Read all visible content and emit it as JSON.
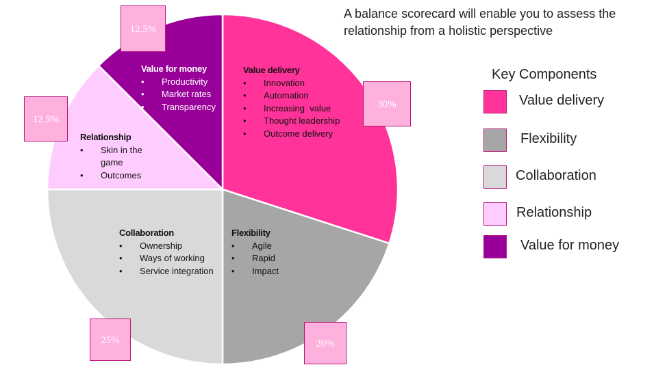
{
  "headline": "A balance scorecard will enable you to assess the relationship from a holistic perspective",
  "legend": {
    "title": "Key Components",
    "items": [
      {
        "label": "Value delivery",
        "color": "#ff3399"
      },
      {
        "label": "Flexibility",
        "color": "#a6a6a6"
      },
      {
        "label": "Collaboration",
        "color": "#d9d9d9"
      },
      {
        "label": "Relationship",
        "color": "#ffccff"
      },
      {
        "label": "Value for money",
        "color": "#990099"
      }
    ]
  },
  "chart_data": {
    "type": "pie",
    "title": "",
    "start": "12 o'clock, clockwise",
    "slices": [
      {
        "name": "Value delivery",
        "value": 30,
        "pct_label": "30%",
        "color": "#ff3399",
        "bullets": [
          "Innovation",
          "Automation",
          "Increasing  value",
          "Thought leadership",
          "Outcome delivery"
        ]
      },
      {
        "name": "Flexibility",
        "value": 20,
        "pct_label": "20%",
        "color": "#a6a6a6",
        "bullets": [
          "Agile",
          "Rapid",
          "Impact"
        ]
      },
      {
        "name": "Collaboration",
        "value": 25,
        "pct_label": "25%",
        "color": "#d9d9d9",
        "bullets": [
          "Ownership",
          "Ways of working",
          "Service integration"
        ]
      },
      {
        "name": "Relationship",
        "value": 12.5,
        "pct_label": "12.5%",
        "color": "#ffccff",
        "bullets": [
          "Skin in the game",
          "Outcomes"
        ]
      },
      {
        "name": "Value for money",
        "value": 12.5,
        "pct_label": "12.5%",
        "color": "#990099",
        "bullets": [
          "Productivity",
          "Market rates",
          "Transparency"
        ]
      }
    ]
  }
}
